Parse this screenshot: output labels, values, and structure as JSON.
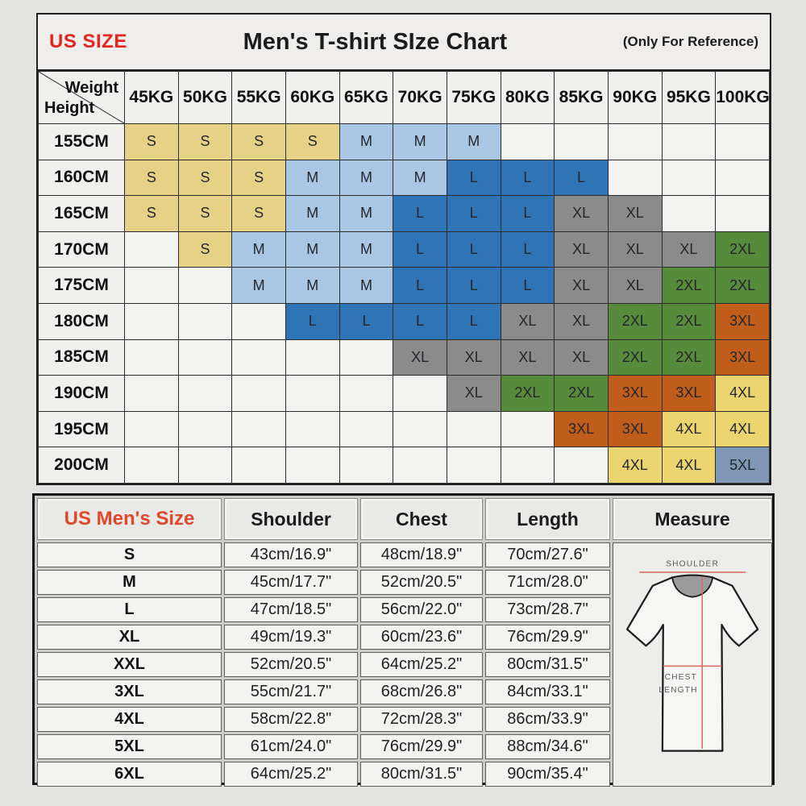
{
  "header": {
    "us_size_label": "US SIZE",
    "title": "Men's T-shirt SIze Chart",
    "reference_note": "(Only For Reference)"
  },
  "colors": {
    "us_size_red": "#e42522",
    "mens_size_red": "#e0482a",
    "measure_line_red": "#d96a5e"
  },
  "chart_data": [
    {
      "type": "heatmap",
      "title": "Men's T-shirt SIze Chart",
      "x_label": "Weight",
      "y_label": "Height",
      "columns": [
        "45KG",
        "50KG",
        "55KG",
        "60KG",
        "65KG",
        "70KG",
        "75KG",
        "80KG",
        "85KG",
        "90KG",
        "95KG",
        "100KG"
      ],
      "rows": [
        "155CM",
        "160CM",
        "165CM",
        "170CM",
        "175CM",
        "180CM",
        "185CM",
        "190CM",
        "195CM",
        "200CM"
      ],
      "values": [
        [
          "S",
          "S",
          "S",
          "S",
          "M",
          "M",
          "M",
          "",
          "",
          "",
          "",
          ""
        ],
        [
          "S",
          "S",
          "S",
          "M",
          "M",
          "M",
          "L",
          "L",
          "L",
          "",
          "",
          ""
        ],
        [
          "S",
          "S",
          "S",
          "M",
          "M",
          "L",
          "L",
          "L",
          "XL",
          "XL",
          "",
          ""
        ],
        [
          "",
          "S",
          "M",
          "M",
          "M",
          "L",
          "L",
          "L",
          "XL",
          "XL",
          "XL",
          "2XL"
        ],
        [
          "",
          "",
          "M",
          "M",
          "M",
          "L",
          "L",
          "L",
          "XL",
          "XL",
          "2XL",
          "2XL"
        ],
        [
          "",
          "",
          "",
          "L",
          "L",
          "L",
          "L",
          "XL",
          "XL",
          "2XL",
          "2XL",
          "3XL"
        ],
        [
          "",
          "",
          "",
          "",
          "",
          "XL",
          "XL",
          "XL",
          "XL",
          "2XL",
          "2XL",
          "3XL"
        ],
        [
          "",
          "",
          "",
          "",
          "",
          "",
          "XL",
          "2XL",
          "2XL",
          "3XL",
          "3XL",
          "4XL"
        ],
        [
          "",
          "",
          "",
          "",
          "",
          "",
          "",
          "",
          "3XL",
          "3XL",
          "4XL",
          "4XL"
        ],
        [
          "",
          "",
          "",
          "",
          "",
          "",
          "",
          "",
          "",
          "4XL",
          "4XL",
          "5XL"
        ]
      ],
      "legend": {
        "S": "#e6d286",
        "M": "#a9c7e5",
        "L": "#2f74b5",
        "XL": "#8b8b8b",
        "2XL": "#568b3b",
        "3XL": "#c05d1a",
        "4XL": "#ecd46e",
        "5XL": "#7f96b5"
      }
    },
    {
      "type": "table",
      "columns": [
        "US Men's Size",
        "Shoulder",
        "Chest",
        "Length",
        "Measure"
      ],
      "rows": [
        [
          "S",
          "43cm/16.9\"",
          "48cm/18.9\"",
          "70cm/27.6\""
        ],
        [
          "M",
          "45cm/17.7\"",
          "52cm/20.5\"",
          "71cm/28.0\""
        ],
        [
          "L",
          "47cm/18.5\"",
          "56cm/22.0\"",
          "73cm/28.7\""
        ],
        [
          "XL",
          "49cm/19.3\"",
          "60cm/23.6\"",
          "76cm/29.9\""
        ],
        [
          "XXL",
          "52cm/20.5\"",
          "64cm/25.2\"",
          "80cm/31.5\""
        ],
        [
          "3XL",
          "55cm/21.7\"",
          "68cm/26.8\"",
          "84cm/33.1\""
        ],
        [
          "4XL",
          "58cm/22.8\"",
          "72cm/28.3\"",
          "86cm/33.9\""
        ],
        [
          "5XL",
          "61cm/24.0\"",
          "76cm/29.9\"",
          "88cm/34.6\""
        ],
        [
          "6XL",
          "64cm/25.2\"",
          "80cm/31.5\"",
          "90cm/35.4\""
        ]
      ]
    }
  ],
  "measure_diagram": {
    "shoulder_label": "SHOULDER",
    "chest_label": "CHEST",
    "length_label": "LENGTH"
  }
}
